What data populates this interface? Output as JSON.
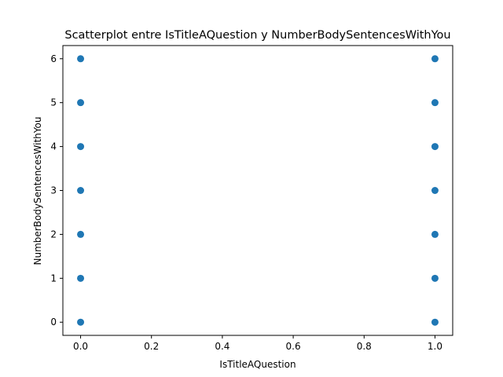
{
  "chart_data": {
    "type": "scatter",
    "title": "Scatterplot entre IsTitleAQuestion y NumberBodySentencesWithYou",
    "xlabel": "IsTitleAQuestion",
    "ylabel": "NumberBodySentencesWithYou",
    "xlim": [
      -0.05,
      1.05
    ],
    "ylim": [
      -0.3,
      6.3
    ],
    "x_ticks": [
      0.0,
      0.2,
      0.4,
      0.6,
      0.8,
      1.0
    ],
    "x_tick_labels": [
      "0.0",
      "0.2",
      "0.4",
      "0.6",
      "0.8",
      "1.0"
    ],
    "y_ticks": [
      0,
      1,
      2,
      3,
      4,
      5,
      6
    ],
    "y_tick_labels": [
      "0",
      "1",
      "2",
      "3",
      "4",
      "5",
      "6"
    ],
    "grid": false,
    "marker_color": "#1f77b4",
    "points": [
      {
        "x": 0,
        "y": 0
      },
      {
        "x": 0,
        "y": 1
      },
      {
        "x": 0,
        "y": 2
      },
      {
        "x": 0,
        "y": 3
      },
      {
        "x": 0,
        "y": 4
      },
      {
        "x": 0,
        "y": 5
      },
      {
        "x": 0,
        "y": 6
      },
      {
        "x": 1,
        "y": 0
      },
      {
        "x": 1,
        "y": 1
      },
      {
        "x": 1,
        "y": 2
      },
      {
        "x": 1,
        "y": 3
      },
      {
        "x": 1,
        "y": 4
      },
      {
        "x": 1,
        "y": 5
      },
      {
        "x": 1,
        "y": 6
      }
    ]
  }
}
